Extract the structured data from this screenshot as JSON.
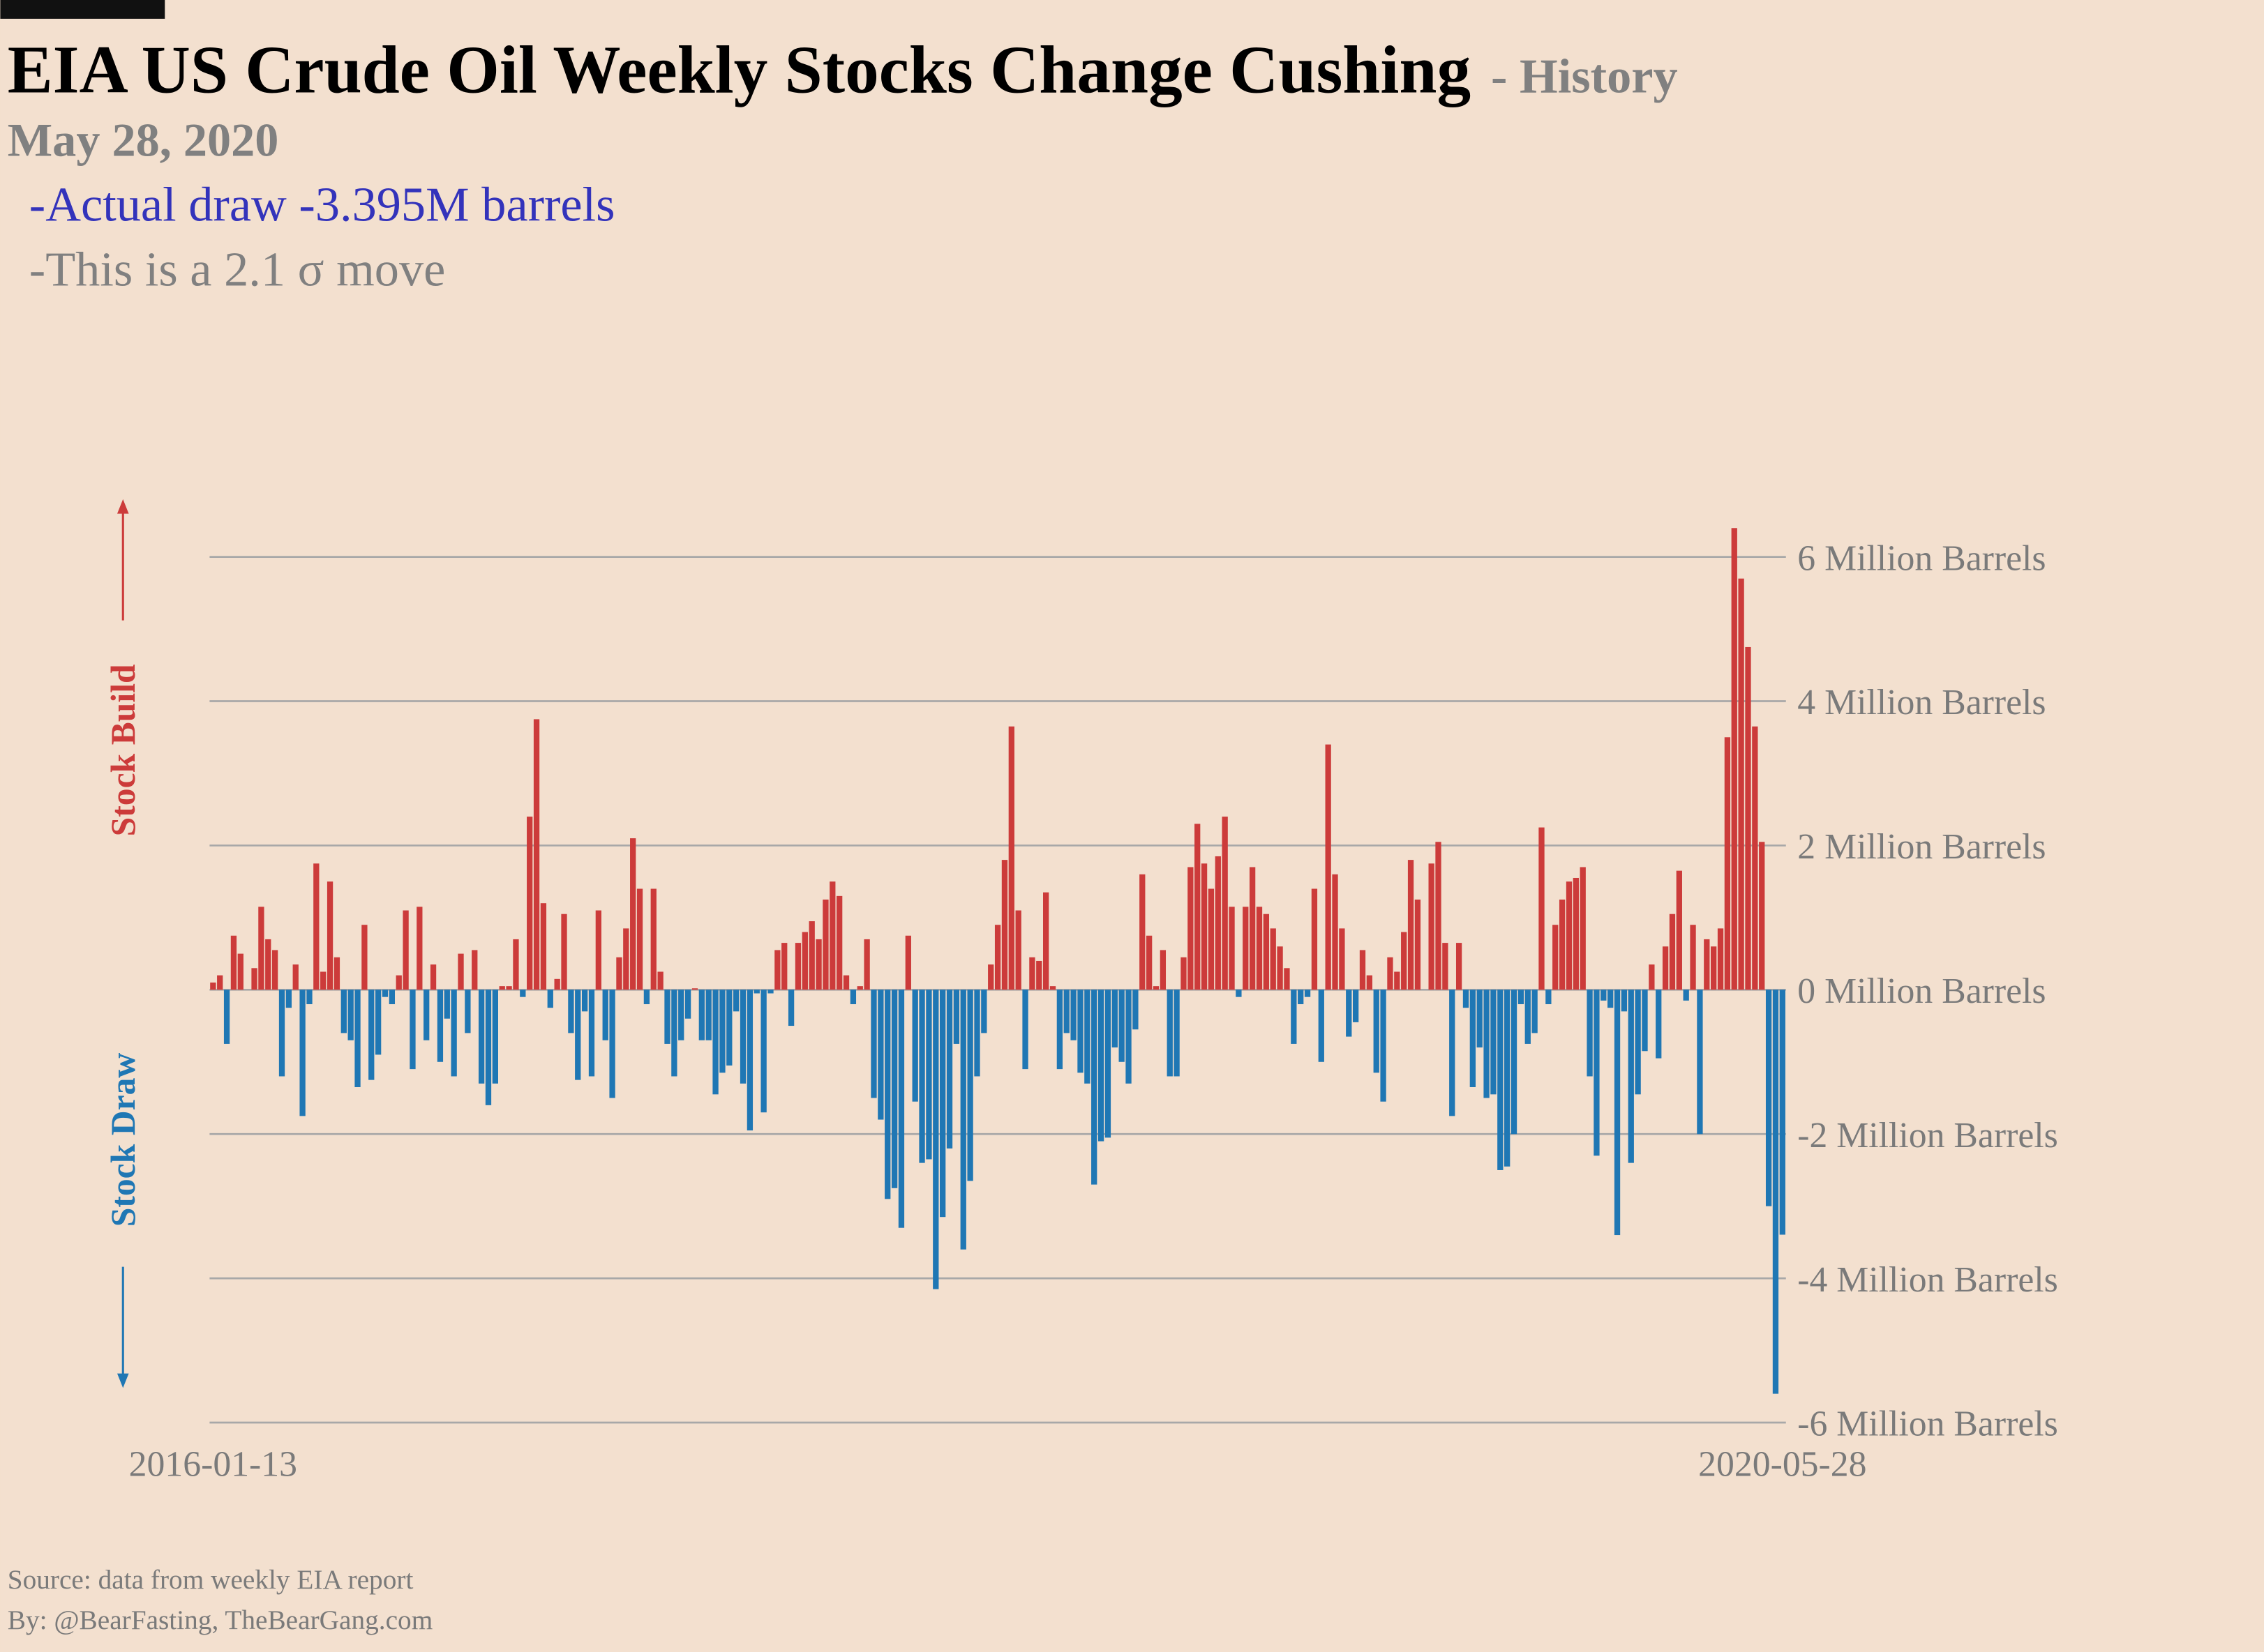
{
  "chart_data": {
    "type": "bar",
    "title": "EIA US Crude Oil Weekly Stocks Change Cushing",
    "subtitle": "- History",
    "date": "May 28, 2020",
    "annotations": [
      "-Actual draw -3.395M barrels",
      "-This is a 2.1 σ move"
    ],
    "up_label": "Stock Build",
    "down_label": "Stock Draw",
    "source": [
      "Source: data from  weekly EIA report",
      "By: @BearFasting, TheBearGang.com"
    ],
    "positive_color": "#cc3b3a",
    "negative_color": "#1f77b4",
    "grid": true,
    "ylim": [
      -6,
      6.4
    ],
    "yticks": [
      {
        "value": -6,
        "label": "-6 Million Barrels"
      },
      {
        "value": -4,
        "label": "-4 Million Barrels"
      },
      {
        "value": -2,
        "label": "-2 Million Barrels"
      },
      {
        "value": 0,
        "label": "0 Million Barrels"
      },
      {
        "value": 2,
        "label": "2 Million Barrels"
      },
      {
        "value": 4,
        "label": "4 Million Barrels"
      },
      {
        "value": 6,
        "label": "6 Million Barrels"
      }
    ],
    "categories": [
      "2016-01-13",
      null,
      null,
      null,
      null,
      null,
      null,
      null,
      null,
      null,
      null,
      null,
      null,
      null,
      null,
      null,
      null,
      null,
      null,
      null,
      null,
      null,
      null,
      null,
      null,
      null,
      null,
      null,
      null,
      null,
      null,
      null,
      null,
      null,
      null,
      null,
      null,
      null,
      null,
      null,
      null,
      null,
      null,
      null,
      null,
      null,
      null,
      null,
      null,
      null,
      null,
      null,
      null,
      null,
      null,
      null,
      null,
      null,
      null,
      null,
      null,
      null,
      null,
      null,
      null,
      null,
      null,
      null,
      null,
      null,
      null,
      null,
      null,
      null,
      null,
      null,
      null,
      null,
      null,
      null,
      null,
      null,
      null,
      null,
      null,
      null,
      null,
      null,
      null,
      null,
      null,
      null,
      null,
      null,
      null,
      null,
      null,
      null,
      null,
      null,
      null,
      null,
      null,
      null,
      null,
      null,
      null,
      null,
      null,
      null,
      null,
      null,
      null,
      null,
      null,
      null,
      null,
      null,
      null,
      null,
      null,
      null,
      null,
      null,
      null,
      null,
      null,
      null,
      null,
      null,
      null,
      null,
      null,
      null,
      null,
      null,
      null,
      null,
      null,
      null,
      null,
      null,
      null,
      null,
      null,
      null,
      null,
      null,
      null,
      null,
      null,
      null,
      null,
      null,
      null,
      null,
      null,
      null,
      null,
      null,
      null,
      null,
      null,
      null,
      null,
      null,
      null,
      null,
      null,
      null,
      null,
      null,
      null,
      null,
      null,
      null,
      null,
      null,
      null,
      null,
      null,
      null,
      null,
      null,
      null,
      null,
      null,
      null,
      null,
      null,
      null,
      null,
      null,
      null,
      null,
      null,
      null,
      null,
      null,
      null,
      null,
      null,
      null,
      null,
      null,
      null,
      null,
      null,
      null,
      null,
      null,
      null,
      null,
      null,
      null,
      null,
      null,
      null,
      null,
      null,
      null,
      null,
      null,
      null,
      null,
      null,
      null,
      null,
      "2020-05-28"
    ],
    "values": [
      0.1,
      0.2,
      -0.75,
      0.75,
      0.5,
      0,
      0.3,
      1.15,
      0.7,
      0.55,
      -1.2,
      -0.25,
      0.35,
      -1.75,
      -0.2,
      1.75,
      0.25,
      1.5,
      0.45,
      -0.6,
      -0.7,
      -1.35,
      0.9,
      -1.25,
      -0.9,
      -0.1,
      -0.2,
      0.2,
      1.1,
      -1.1,
      1.15,
      -0.7,
      0.35,
      -1.0,
      -0.4,
      -1.2,
      0.5,
      -0.6,
      0.55,
      -1.3,
      -1.6,
      -1.3,
      0.05,
      0.05,
      0.7,
      -0.1,
      2.4,
      3.75,
      1.2,
      -0.25,
      0.15,
      1.05,
      -0.6,
      -1.25,
      -0.3,
      -1.2,
      1.1,
      -0.7,
      -1.5,
      0.45,
      0.85,
      2.1,
      1.4,
      -0.2,
      1.4,
      0.25,
      -0.75,
      -1.2,
      -0.7,
      -0.4,
      0.02,
      -0.7,
      -0.7,
      -1.45,
      -1.15,
      -1.05,
      -0.3,
      -1.3,
      -1.95,
      -0.05,
      -1.7,
      -0.05,
      0.55,
      0.65,
      -0.5,
      0.65,
      0.8,
      0.95,
      0.7,
      1.25,
      1.5,
      1.3,
      0.2,
      -0.2,
      0.05,
      0.7,
      -1.5,
      -1.8,
      -2.9,
      -2.75,
      -3.3,
      0.75,
      -1.55,
      -2.4,
      -2.35,
      -4.15,
      -3.15,
      -2.2,
      -0.75,
      -3.6,
      -2.65,
      -1.2,
      -0.6,
      0.35,
      0.9,
      1.8,
      3.65,
      1.1,
      -1.1,
      0.45,
      0.4,
      1.35,
      0.05,
      -1.1,
      -0.6,
      -0.7,
      -1.15,
      -1.3,
      -2.7,
      -2.1,
      -2.05,
      -0.8,
      -1.0,
      -1.3,
      -0.55,
      1.6,
      0.75,
      0.05,
      0.55,
      -1.2,
      -1.2,
      0.45,
      1.7,
      2.3,
      1.75,
      1.4,
      1.85,
      2.4,
      1.15,
      -0.1,
      1.15,
      1.7,
      1.15,
      1.05,
      0.85,
      0.6,
      0.3,
      -0.75,
      -0.2,
      -0.1,
      1.4,
      -1.0,
      3.4,
      1.6,
      0.85,
      -0.65,
      -0.45,
      0.55,
      0.2,
      -1.15,
      -1.55,
      0.45,
      0.25,
      0.8,
      1.8,
      1.25,
      0,
      1.75,
      2.05,
      0.65,
      -1.75,
      0.65,
      -0.25,
      -1.35,
      -0.8,
      -1.5,
      -1.45,
      -2.5,
      -2.45,
      -2.0,
      -0.2,
      -0.75,
      -0.6,
      2.25,
      -0.2,
      0.9,
      1.25,
      1.5,
      1.55,
      1.7,
      -1.2,
      -2.3,
      -0.15,
      -0.25,
      -3.4,
      -0.3,
      -2.4,
      -1.45,
      -0.85,
      0.35,
      -0.95,
      0.6,
      1.05,
      1.65,
      -0.15,
      0.9,
      -2.0,
      0.7,
      0.6,
      0.85,
      3.5,
      6.4,
      5.7,
      4.75,
      3.65,
      2.05,
      -3.0,
      -5.6,
      -3.395
    ]
  }
}
